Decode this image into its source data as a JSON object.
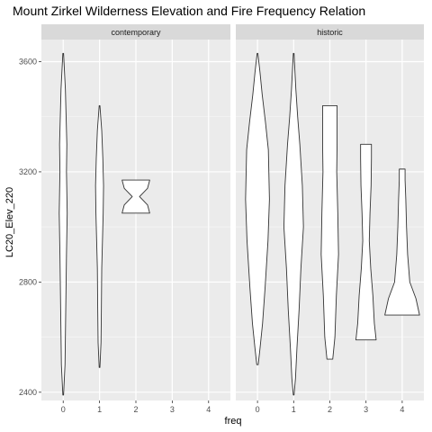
{
  "chart_data": {
    "type": "violin",
    "title": "Mount Zirkel Wilderness Elevation and Fire Frequency Relation",
    "xlabel": "freq",
    "ylabel": "LC20_Elev_220",
    "ylim": [
      2370,
      3680
    ],
    "y_ticks": [
      2400,
      2800,
      3200,
      3600
    ],
    "x_ticks": [
      "0",
      "1",
      "2",
      "3",
      "4"
    ],
    "grid": true,
    "panels": [
      {
        "name": "contemporary",
        "violins": [
          {
            "x": 0,
            "profile": [
              [
                2390,
                0.01
              ],
              [
                2500,
                0.05
              ],
              [
                2700,
                0.07
              ],
              [
                2900,
                0.09
              ],
              [
                3050,
                0.11
              ],
              [
                3200,
                0.09
              ],
              [
                3300,
                0.1
              ],
              [
                3400,
                0.08
              ],
              [
                3500,
                0.06
              ],
              [
                3630,
                0.01
              ]
            ]
          },
          {
            "x": 1,
            "profile": [
              [
                2490,
                0.01
              ],
              [
                2580,
                0.04
              ],
              [
                2700,
                0.05
              ],
              [
                2850,
                0.06
              ],
              [
                2950,
                0.08
              ],
              [
                3050,
                0.1
              ],
              [
                3150,
                0.11
              ],
              [
                3250,
                0.09
              ],
              [
                3350,
                0.06
              ],
              [
                3440,
                0.01
              ]
            ]
          },
          {
            "x": 2,
            "profile": [
              [
                3050,
                0.38
              ],
              [
                3080,
                0.32
              ],
              [
                3110,
                0.1
              ],
              [
                3140,
                0.32
              ],
              [
                3170,
                0.38
              ]
            ]
          }
        ]
      },
      {
        "name": "historic",
        "violins": [
          {
            "x": 0,
            "profile": [
              [
                2500,
                0.02
              ],
              [
                2560,
                0.07
              ],
              [
                2650,
                0.14
              ],
              [
                2780,
                0.21
              ],
              [
                2950,
                0.29
              ],
              [
                3100,
                0.33
              ],
              [
                3280,
                0.3
              ],
              [
                3380,
                0.22
              ],
              [
                3480,
                0.13
              ],
              [
                3560,
                0.07
              ],
              [
                3630,
                0.01
              ]
            ]
          },
          {
            "x": 1,
            "profile": [
              [
                2390,
                0.01
              ],
              [
                2450,
                0.05
              ],
              [
                2560,
                0.09
              ],
              [
                2700,
                0.15
              ],
              [
                2850,
                0.2
              ],
              [
                3000,
                0.27
              ],
              [
                3150,
                0.24
              ],
              [
                3300,
                0.17
              ],
              [
                3400,
                0.11
              ],
              [
                3500,
                0.06
              ],
              [
                3630,
                0.01
              ]
            ]
          },
          {
            "x": 2,
            "profile": [
              [
                2520,
                0.08
              ],
              [
                2600,
                0.14
              ],
              [
                2750,
                0.18
              ],
              [
                2900,
                0.24
              ],
              [
                3050,
                0.22
              ],
              [
                3200,
                0.19
              ],
              [
                3300,
                0.2
              ],
              [
                3440,
                0.2
              ]
            ]
          },
          {
            "x": 3,
            "profile": [
              [
                2590,
                0.28
              ],
              [
                2650,
                0.23
              ],
              [
                2750,
                0.19
              ],
              [
                2850,
                0.13
              ],
              [
                2950,
                0.09
              ],
              [
                3050,
                0.11
              ],
              [
                3150,
                0.14
              ],
              [
                3250,
                0.15
              ],
              [
                3300,
                0.15
              ]
            ]
          },
          {
            "x": 4,
            "profile": [
              [
                2680,
                0.48
              ],
              [
                2740,
                0.38
              ],
              [
                2800,
                0.21
              ],
              [
                2900,
                0.15
              ],
              [
                3000,
                0.12
              ],
              [
                3100,
                0.1
              ],
              [
                3170,
                0.08
              ],
              [
                3210,
                0.08
              ]
            ]
          }
        ]
      }
    ]
  }
}
